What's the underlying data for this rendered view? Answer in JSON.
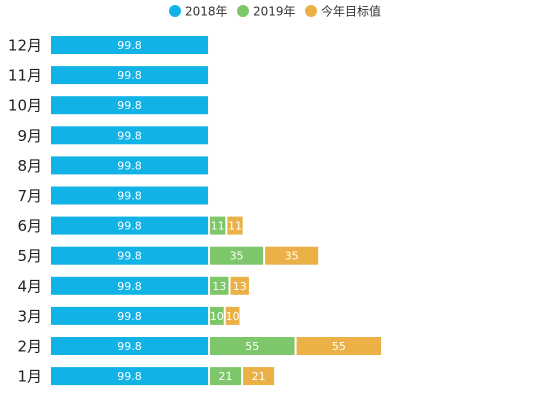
{
  "colors": {
    "series_2018": "#11b2e6",
    "series_2019": "#7dc66a",
    "series_target": "#ebb146",
    "bar_label": "#ffffff",
    "tick_label": "#222222",
    "legend_text": "#333333"
  },
  "chart_data": {
    "type": "bar",
    "orientation": "horizontal",
    "stacked": true,
    "title": "",
    "xlabel": "",
    "ylabel": "",
    "legend_position": "top-center",
    "grid": false,
    "categories": [
      "12月",
      "11月",
      "10月",
      "9月",
      "8月",
      "7月",
      "6月",
      "5月",
      "4月",
      "3月",
      "2月",
      "1月"
    ],
    "series": [
      {
        "name": "2018年",
        "color_key": "series_2018",
        "values": [
          99.8,
          99.8,
          99.8,
          99.8,
          99.8,
          99.8,
          99.8,
          99.8,
          99.8,
          99.8,
          99.8,
          99.8
        ]
      },
      {
        "name": "2019年",
        "color_key": "series_2019",
        "values": [
          null,
          null,
          null,
          null,
          null,
          null,
          11,
          35,
          13,
          10,
          55,
          21
        ]
      },
      {
        "name": "今年目标值",
        "color_key": "series_target",
        "values": [
          null,
          null,
          null,
          null,
          null,
          null,
          11,
          35,
          13,
          10,
          55,
          21
        ]
      }
    ],
    "data_labels": true,
    "xlim": [
      0,
      286
    ]
  }
}
